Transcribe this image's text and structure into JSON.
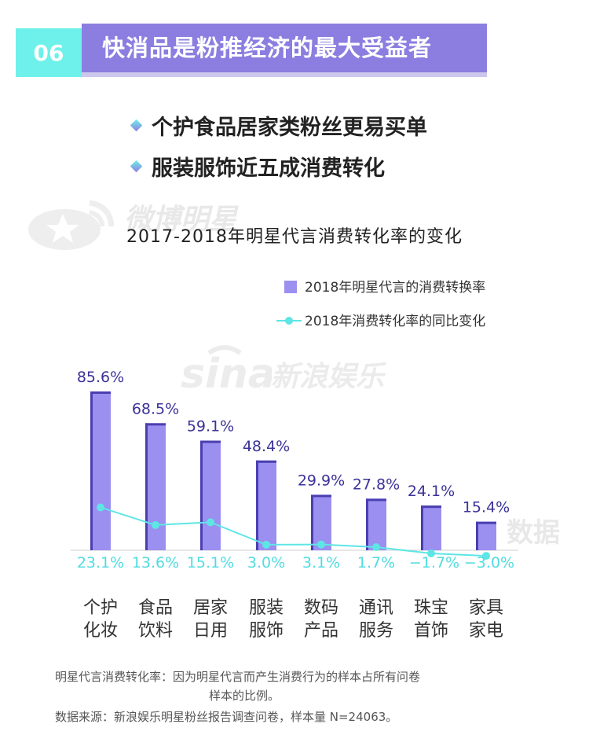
{
  "header": {
    "badge_number": "06",
    "title": "快消品是粉推经济的最大受益者"
  },
  "bullets": [
    "个护食品居家类粉丝更易买单",
    "服装服饰近五成消费转化"
  ],
  "watermarks": {
    "weibo": "微博明星",
    "sina": "新浪娱乐",
    "data": "数据"
  },
  "chart_data": {
    "type": "bar",
    "title": "2017-2018年明星代言消费转化率的变化",
    "categories": [
      [
        "个护",
        "化妆"
      ],
      [
        "食品",
        "饮料"
      ],
      [
        "居家",
        "日用"
      ],
      [
        "服装",
        "服饰"
      ],
      [
        "数码",
        "产品"
      ],
      [
        "通讯",
        "服务"
      ],
      [
        "珠宝",
        "首饰"
      ],
      [
        "家具",
        "家电"
      ]
    ],
    "series": [
      {
        "name": "2018年明星代言的消费转换率",
        "type": "bar",
        "values": [
          85.6,
          68.5,
          59.1,
          48.4,
          29.9,
          27.8,
          24.1,
          15.4
        ],
        "labels": [
          "85.6%",
          "68.5%",
          "59.1%",
          "48.4%",
          "29.9%",
          "27.8%",
          "24.1%",
          "15.4%"
        ],
        "color": "#9b8ff0"
      },
      {
        "name": "2018年消费转化率的同比变化",
        "type": "line",
        "values": [
          23.1,
          13.6,
          15.1,
          3.0,
          3.1,
          1.7,
          -1.7,
          -3.0
        ],
        "labels": [
          "23.1%",
          "13.6%",
          "15.1%",
          "3.0%",
          "3.1%",
          "1.7%",
          "−1.7%",
          "−3.0%"
        ],
        "color": "#5ee6e6"
      }
    ],
    "legend_position": "top-right"
  },
  "notes": {
    "definition_line1": "明星代言消费转化率：因为明星代言而产生消费行为的样本占所有问卷",
    "definition_line2": "样本的比例。",
    "source": "数据来源：新浪娱乐明星粉丝报告调查问卷，样本量 N=24063。"
  }
}
